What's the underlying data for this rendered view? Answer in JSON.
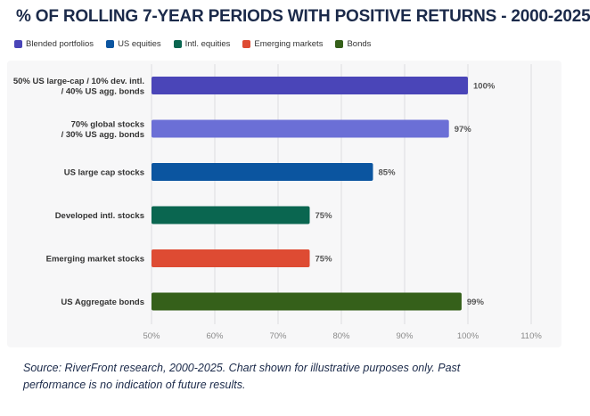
{
  "chart_data": {
    "type": "bar",
    "orientation": "horizontal",
    "title": "% OF ROLLING 7-YEAR PERIODS WITH POSITIVE RETURNS - 2000-2025",
    "legend": [
      {
        "name": "Blended portfolios",
        "color": "#4a45b8"
      },
      {
        "name": "US equities",
        "color": "#0b55a0"
      },
      {
        "name": "Intl. equities",
        "color": "#0a6650"
      },
      {
        "name": "Emerging markets",
        "color": "#de4b33"
      },
      {
        "name": "Bonds",
        "color": "#35601a"
      }
    ],
    "categories": [
      [
        "50% US large-cap / 10% dev. intl.",
        "/ 40% US agg. bonds"
      ],
      [
        "70% global stocks",
        "/ 30% US agg. bonds"
      ],
      [
        "US large cap stocks"
      ],
      [
        "Developed intl. stocks"
      ],
      [
        "Emerging market stocks"
      ],
      [
        "US Aggregate bonds"
      ]
    ],
    "values": [
      100,
      97,
      85,
      75,
      75,
      99
    ],
    "value_labels": [
      "100%",
      "97%",
      "85%",
      "75%",
      "75%",
      "99%"
    ],
    "bar_colors": [
      "#4a45b8",
      "#6b6fd6",
      "#0b55a0",
      "#0a6650",
      "#de4b33",
      "#35601a"
    ],
    "xlim": [
      50,
      110
    ],
    "xticks": [
      50,
      60,
      70,
      80,
      90,
      100,
      110
    ],
    "xtick_labels": [
      "50%",
      "60%",
      "70%",
      "80%",
      "90%",
      "100%",
      "110%"
    ],
    "grid": true,
    "legend_position": "top-left"
  },
  "source": "Source: RiverFront research, 2000-2025.  Chart shown for illustrative purposes only. Past performance is no indication of future results."
}
